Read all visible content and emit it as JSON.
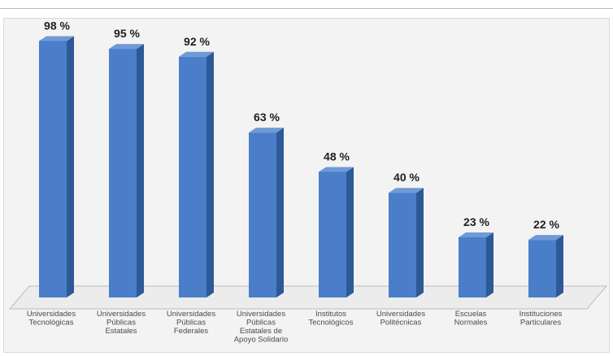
{
  "chart_data": {
    "type": "bar",
    "categories": [
      [
        "Universidades",
        "Tecnológicas"
      ],
      [
        "Universidades",
        "Públicas",
        "Estatales"
      ],
      [
        "Universidades",
        "Públicas",
        "Federales"
      ],
      [
        "Universidades",
        "Públicas",
        "Estatales de",
        "Apoyo Solidario"
      ],
      [
        "Institutos",
        "Tecnológicos"
      ],
      [
        "Universidades",
        "Politécnicas"
      ],
      [
        "Escuelas",
        "Normales"
      ],
      [
        "Instituciones",
        "Particulares"
      ]
    ],
    "values": [
      98,
      95,
      92,
      63,
      48,
      40,
      23,
      22
    ],
    "value_labels": [
      "98 %",
      "95 %",
      "92 %",
      "63 %",
      "48 %",
      "40 %",
      "23 %",
      "22 %"
    ],
    "ylim": [
      0,
      100
    ],
    "grid": false,
    "legend": "none",
    "colors": {
      "bar_front": "#4a7ec9",
      "bar_side": "#2d5a96",
      "bar_top": "#6f9ad6",
      "floor": "#ececec",
      "floor_edge": "#bdbdbd",
      "panel": "#f3f3f3"
    }
  }
}
